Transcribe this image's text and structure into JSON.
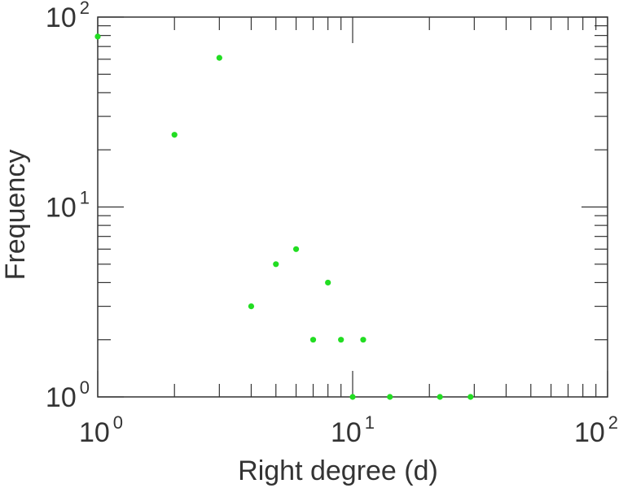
{
  "chart_data": {
    "type": "scatter",
    "xlabel": "Right degree (d)",
    "ylabel": "Frequency",
    "xscale": "log",
    "yscale": "log",
    "xlim": [
      1,
      100
    ],
    "ylim": [
      1,
      100
    ],
    "x_ticks": [
      {
        "value": 1,
        "base": "10",
        "exp": "0"
      },
      {
        "value": 10,
        "base": "10",
        "exp": "1"
      },
      {
        "value": 100,
        "base": "10",
        "exp": "2"
      }
    ],
    "y_ticks": [
      {
        "value": 1,
        "base": "10",
        "exp": "0"
      },
      {
        "value": 10,
        "base": "10",
        "exp": "1"
      },
      {
        "value": 100,
        "base": "10",
        "exp": "2"
      }
    ],
    "grid": false,
    "marker_color": "#22dd22",
    "points": [
      {
        "x": 1,
        "y": 79
      },
      {
        "x": 2,
        "y": 24
      },
      {
        "x": 3,
        "y": 61
      },
      {
        "x": 4,
        "y": 3
      },
      {
        "x": 5,
        "y": 5
      },
      {
        "x": 6,
        "y": 6
      },
      {
        "x": 7,
        "y": 2
      },
      {
        "x": 8,
        "y": 4
      },
      {
        "x": 9,
        "y": 2
      },
      {
        "x": 10,
        "y": 1
      },
      {
        "x": 11,
        "y": 2
      },
      {
        "x": 14,
        "y": 1
      },
      {
        "x": 22,
        "y": 1
      },
      {
        "x": 29,
        "y": 1
      }
    ]
  }
}
